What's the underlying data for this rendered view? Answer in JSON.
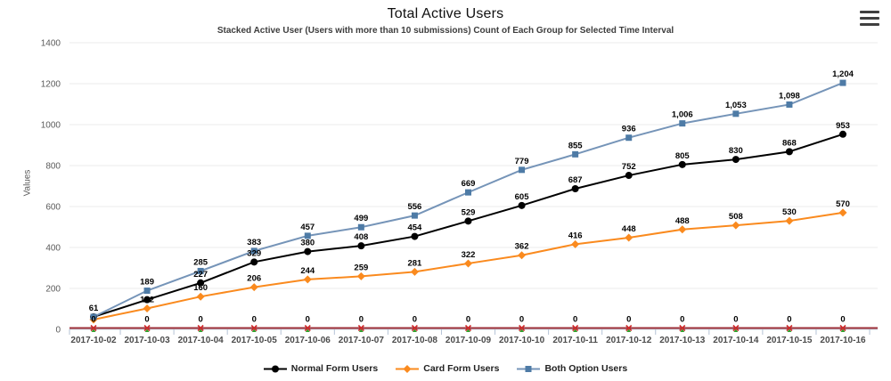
{
  "icons": {
    "menu": "hamburger-menu"
  },
  "chart_data": {
    "type": "line",
    "title": "Total Active Users",
    "subtitle": "Stacked Active User (Users with more than 10 submissions) Count of Each Group for Selected Time Interval",
    "ylabel": "Values",
    "ylim": [
      0,
      1400
    ],
    "yticks": [
      0,
      200,
      400,
      600,
      800,
      1000,
      1200,
      1400
    ],
    "grid": true,
    "legend_position": "bottom",
    "categories": [
      "2017-10-02",
      "2017-10-03",
      "2017-10-04",
      "2017-10-05",
      "2017-10-06",
      "2017-10-07",
      "2017-10-08",
      "2017-10-09",
      "2017-10-10",
      "2017-10-11",
      "2017-10-12",
      "2017-10-13",
      "2017-10-14",
      "2017-10-15",
      "2017-10-16"
    ],
    "series": [
      {
        "name": "Normal Form Users",
        "color": "#000000",
        "marker": "circle",
        "marker_color": "#000000",
        "values": [
          61,
          145,
          227,
          329,
          380,
          408,
          454,
          529,
          605,
          687,
          752,
          805,
          830,
          868,
          953
        ],
        "labels": [
          "61",
          null,
          "227",
          "329",
          "380",
          "408",
          "454",
          "529",
          "605",
          "687",
          "752",
          "805",
          "830",
          "868",
          "953"
        ]
      },
      {
        "name": "Card Form Users",
        "color": "#FA8A1E",
        "marker": "diamond",
        "marker_color": "#FA8A1E",
        "values": [
          48,
          102,
          160,
          206,
          244,
          259,
          281,
          322,
          362,
          416,
          448,
          488,
          508,
          530,
          570
        ],
        "labels": [
          null,
          "102",
          "160",
          "206",
          "244",
          "259",
          "281",
          "322",
          "362",
          "416",
          "448",
          "488",
          "508",
          "530",
          "570"
        ]
      },
      {
        "name": "Both Option Users",
        "color": "#7594B8",
        "marker": "square",
        "marker_color": "#4E7BA6",
        "values": [
          61,
          189,
          285,
          383,
          457,
          499,
          556,
          669,
          779,
          855,
          936,
          1006,
          1053,
          1098,
          1204
        ],
        "labels": [
          null,
          "189",
          "285",
          "383",
          "457",
          "499",
          "556",
          "669",
          "779",
          "855",
          "936",
          "1,006",
          "1,053",
          "1,098",
          "1,204"
        ]
      },
      {
        "name": "",
        "in_legend": false,
        "color": "#9E3039",
        "marker": "x-cross",
        "marker_color": "#CE2B2B",
        "marker_accent": "#33A02C",
        "values": [
          0,
          0,
          0,
          0,
          0,
          0,
          0,
          0,
          0,
          0,
          0,
          0,
          0,
          0,
          0
        ],
        "labels": [
          "0",
          "0",
          "0",
          "0",
          "0",
          "0",
          "0",
          "0",
          "0",
          "0",
          "0",
          "0",
          "0",
          "0",
          "0"
        ]
      }
    ]
  }
}
